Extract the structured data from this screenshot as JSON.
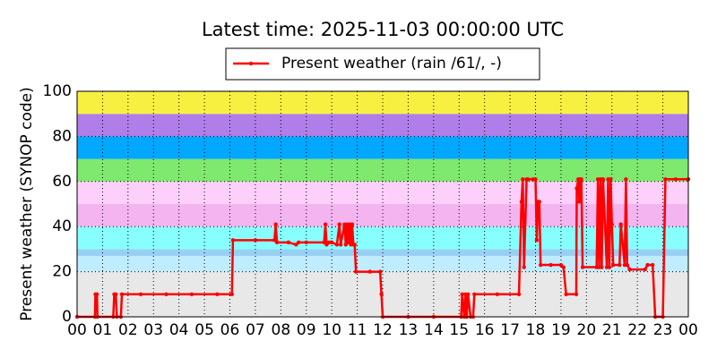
{
  "chart_data": {
    "type": "line",
    "title": "Latest time: 2025-11-03 00:00:00 UTC",
    "ylabel": "Present weather (SYNOP code)",
    "series": [
      {
        "name": "Present weather (rain /61/, -)",
        "color": "#ff0000",
        "x": [
          0,
          0.7,
          0.72,
          0.78,
          0.8,
          1.42,
          1.46,
          1.52,
          1.56,
          1.72,
          1.76,
          2.5,
          3.5,
          4.5,
          5.5,
          6.08,
          6.12,
          7.0,
          7.75,
          7.8,
          7.85,
          8.3,
          8.6,
          8.7,
          9.0,
          9.7,
          9.75,
          9.8,
          9.9,
          10.0,
          10.2,
          10.3,
          10.35,
          10.5,
          10.55,
          10.6,
          10.65,
          10.7,
          10.75,
          10.8,
          10.85,
          10.9,
          10.95,
          11.5,
          11.9,
          11.95,
          12.0,
          13,
          14,
          15.08,
          15.12,
          15.2,
          15.25,
          15.3,
          15.35,
          15.45,
          15.55,
          15.6,
          16.5,
          17.35,
          17.45,
          17.5,
          17.55,
          17.65,
          17.7,
          17.9,
          18.0,
          18.05,
          18.1,
          18.15,
          18.2,
          18.6,
          19.0,
          19.1,
          19.2,
          19.6,
          19.62,
          19.68,
          19.72,
          19.76,
          19.8,
          19.85,
          20.4,
          20.45,
          20.5,
          20.55,
          20.6,
          20.65,
          20.8,
          20.85,
          20.9,
          20.95,
          21.0,
          21.05,
          21.3,
          21.35,
          21.5,
          21.55,
          21.6,
          21.7,
          22.3,
          22.4,
          22.6,
          22.7,
          23.0,
          23.1,
          23.5,
          24
        ],
        "values": [
          0,
          0,
          10,
          10,
          0,
          0,
          10,
          10,
          0,
          0,
          10,
          10,
          10,
          10,
          10,
          10,
          34,
          34,
          34,
          41,
          33,
          33,
          32,
          33,
          33,
          33,
          41,
          32,
          33,
          33,
          32,
          41,
          32,
          41,
          32,
          41,
          33,
          41,
          32,
          41,
          32,
          32,
          20,
          20,
          20,
          10,
          0,
          0,
          0,
          0,
          10,
          0,
          10,
          0,
          10,
          0,
          0,
          10,
          10,
          10,
          51,
          61,
          22,
          61,
          61,
          61,
          61,
          34,
          51,
          51,
          23,
          23,
          23,
          22,
          10,
          10,
          57,
          61,
          51,
          61,
          61,
          22,
          22,
          61,
          22,
          61,
          22,
          61,
          22,
          61,
          22,
          61,
          41,
          23,
          23,
          41,
          23,
          61,
          23,
          21,
          21,
          23,
          23,
          0,
          0,
          61,
          61,
          61
        ]
      }
    ],
    "bands": [
      {
        "from": 0,
        "to": 20,
        "color": "#e8e8e8"
      },
      {
        "from": 20,
        "to": 27,
        "color": "#c0ecff"
      },
      {
        "from": 27,
        "to": 30,
        "color": "#98d0f4"
      },
      {
        "from": 30,
        "to": 40,
        "color": "#88ffff"
      },
      {
        "from": 40,
        "to": 50,
        "color": "#f4b4f0"
      },
      {
        "from": 50,
        "to": 60,
        "color": "#fdd0fb"
      },
      {
        "from": 60,
        "to": 70,
        "color": "#7fe86f"
      },
      {
        "from": 70,
        "to": 80,
        "color": "#00a8ff"
      },
      {
        "from": 80,
        "to": 90,
        "color": "#b07ee8"
      },
      {
        "from": 90,
        "to": 100,
        "color": "#f8f040"
      }
    ],
    "xlim": [
      0,
      24
    ],
    "xticks": [
      {
        "value": 0,
        "label": "00"
      },
      {
        "value": 1,
        "label": "01"
      },
      {
        "value": 2,
        "label": "02"
      },
      {
        "value": 3,
        "label": "03"
      },
      {
        "value": 4,
        "label": "04"
      },
      {
        "value": 5,
        "label": "05"
      },
      {
        "value": 6,
        "label": "06"
      },
      {
        "value": 7,
        "label": "07"
      },
      {
        "value": 8,
        "label": "08"
      },
      {
        "value": 9,
        "label": "09"
      },
      {
        "value": 10,
        "label": "10"
      },
      {
        "value": 11,
        "label": "11"
      },
      {
        "value": 12,
        "label": "12"
      },
      {
        "value": 13,
        "label": "13"
      },
      {
        "value": 14,
        "label": "14"
      },
      {
        "value": 15,
        "label": "15"
      },
      {
        "value": 16,
        "label": "16"
      },
      {
        "value": 17,
        "label": "17"
      },
      {
        "value": 18,
        "label": "18"
      },
      {
        "value": 19,
        "label": "19"
      },
      {
        "value": 20,
        "label": "20"
      },
      {
        "value": 21,
        "label": "21"
      },
      {
        "value": 22,
        "label": "22"
      },
      {
        "value": 23,
        "label": "23"
      },
      {
        "value": 24,
        "label": "00"
      }
    ],
    "ylim": [
      0,
      100
    ],
    "yticks": [
      0,
      20,
      40,
      60,
      80,
      100
    ],
    "grid": true
  }
}
